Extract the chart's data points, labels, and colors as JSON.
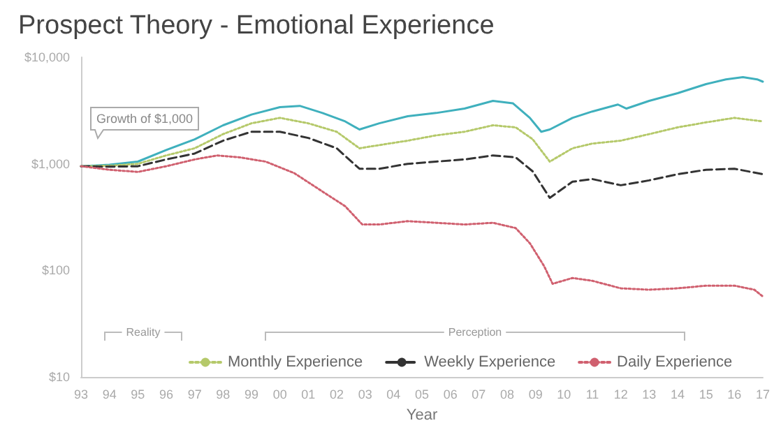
{
  "chart_data": {
    "type": "line",
    "title": "Prospect Theory - Emotional Experience",
    "xlabel": "Year",
    "log": "y",
    "grid": false,
    "legend": "bottom",
    "marker": "none",
    "xlim": [
      1993,
      2017
    ],
    "xticks": [
      {
        "value": 1993,
        "label": "93"
      },
      {
        "value": 1994,
        "label": "94"
      },
      {
        "value": 1995,
        "label": "95"
      },
      {
        "value": 1996,
        "label": "96"
      },
      {
        "value": 1997,
        "label": "97"
      },
      {
        "value": 1998,
        "label": "98"
      },
      {
        "value": 1999,
        "label": "99"
      },
      {
        "value": 2000,
        "label": "00"
      },
      {
        "value": 2001,
        "label": "01"
      },
      {
        "value": 2002,
        "label": "02"
      },
      {
        "value": 2003,
        "label": "03"
      },
      {
        "value": 2004,
        "label": "04"
      },
      {
        "value": 2005,
        "label": "05"
      },
      {
        "value": 2006,
        "label": "06"
      },
      {
        "value": 2007,
        "label": "07"
      },
      {
        "value": 2008,
        "label": "08"
      },
      {
        "value": 2009,
        "label": "09"
      },
      {
        "value": 2010,
        "label": "10"
      },
      {
        "value": 2011,
        "label": "11"
      },
      {
        "value": 2012,
        "label": "12"
      },
      {
        "value": 2013,
        "label": "13"
      },
      {
        "value": 2014,
        "label": "14"
      },
      {
        "value": 2015,
        "label": "15"
      },
      {
        "value": 2016,
        "label": "16"
      },
      {
        "value": 2017,
        "label": "17"
      }
    ],
    "ylim": [
      10,
      10000
    ],
    "yticks": [
      {
        "value": 10,
        "label": "$10"
      },
      {
        "value": 100,
        "label": "$100"
      },
      {
        "value": 1000,
        "label": "$1,000"
      },
      {
        "value": 10000,
        "label": "$10,000"
      }
    ],
    "annotations": [
      "Growth of $1,000",
      "Reality",
      "Perception"
    ],
    "series": [
      {
        "color": "#3fb0bd",
        "line_style": "solid",
        "x": [
          1993,
          1994,
          1995,
          1996,
          1997,
          1998,
          1999,
          2000,
          2000.7,
          2001.5,
          2002.3,
          2002.8,
          2003.5,
          2004.5,
          2005.5,
          2006.5,
          2007.5,
          2008.2,
          2008.8,
          2009.2,
          2009.5,
          2010.3,
          2011,
          2011.9,
          2012.2,
          2013,
          2014,
          2015,
          2015.7,
          2016.3,
          2016.8,
          2017
        ],
        "values": [
          950,
          980,
          1050,
          1350,
          1700,
          2300,
          2900,
          3400,
          3500,
          3000,
          2500,
          2100,
          2400,
          2800,
          3000,
          3300,
          3900,
          3700,
          2700,
          2000,
          2100,
          2700,
          3100,
          3600,
          3300,
          3900,
          4600,
          5600,
          6200,
          6500,
          6200,
          5900
        ]
      },
      {
        "name": "Monthly Experience",
        "color": "#b5c96a",
        "line_style": "dotted",
        "x": [
          1993,
          1994,
          1995,
          1996,
          1997,
          1998,
          1999,
          2000,
          2001,
          2002,
          2002.8,
          2003.5,
          2004.5,
          2005.5,
          2006.5,
          2007.5,
          2008.3,
          2008.9,
          2009.5,
          2010.3,
          2011,
          2012,
          2013,
          2014,
          2015,
          2016,
          2017
        ],
        "values": [
          950,
          960,
          1000,
          1200,
          1400,
          1900,
          2400,
          2700,
          2400,
          2000,
          1400,
          1500,
          1650,
          1850,
          2000,
          2300,
          2200,
          1700,
          1050,
          1400,
          1550,
          1650,
          1900,
          2200,
          2450,
          2700,
          2500
        ]
      },
      {
        "name": "Weekly Experience",
        "color": "#333333",
        "line_style": "dashed",
        "x": [
          1993,
          1994,
          1995,
          1996,
          1997,
          1998,
          1999,
          2000,
          2001,
          2002,
          2002.8,
          2003.5,
          2004.5,
          2005.5,
          2006.5,
          2007.5,
          2008.3,
          2008.9,
          2009.5,
          2010.3,
          2011,
          2012,
          2013,
          2014,
          2015,
          2016,
          2017
        ],
        "values": [
          950,
          940,
          950,
          1100,
          1250,
          1650,
          2000,
          2000,
          1750,
          1400,
          900,
          900,
          1000,
          1050,
          1100,
          1200,
          1150,
          850,
          480,
          680,
          720,
          630,
          700,
          800,
          880,
          900,
          800
        ]
      },
      {
        "name": "Daily Experience",
        "color": "#d0606f",
        "line_style": "dotted",
        "x": [
          1993,
          1994,
          1995,
          1996,
          1997,
          1997.8,
          1998.6,
          1999.5,
          2000.5,
          2001.5,
          2002.3,
          2002.9,
          2003.5,
          2004.5,
          2005.5,
          2006.5,
          2007.5,
          2008.3,
          2008.8,
          2009.3,
          2009.6,
          2010.3,
          2011,
          2012,
          2013,
          2014,
          2015,
          2016,
          2016.7,
          2017
        ],
        "values": [
          950,
          880,
          840,
          950,
          1100,
          1200,
          1150,
          1050,
          820,
          550,
          400,
          270,
          270,
          290,
          280,
          270,
          280,
          250,
          180,
          110,
          75,
          85,
          80,
          68,
          66,
          68,
          72,
          72,
          66,
          57
        ]
      }
    ]
  }
}
